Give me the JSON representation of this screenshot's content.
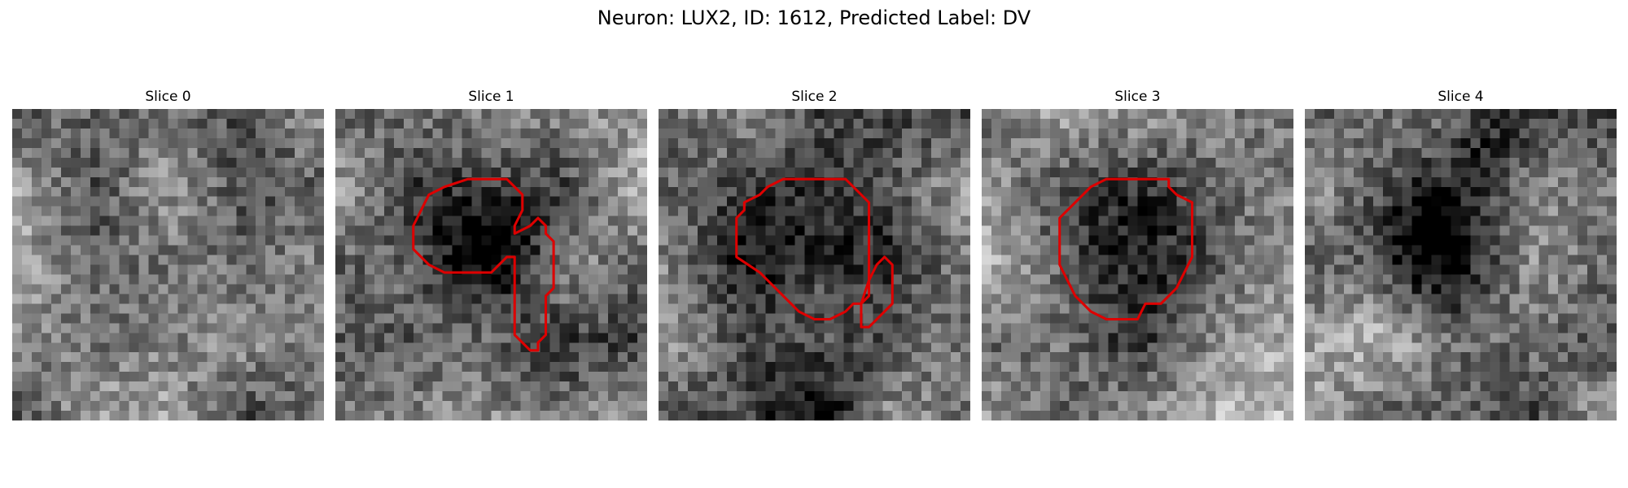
{
  "figure": {
    "title": "Neuron: LUX2, ID: 1612, Predicted Label: DV"
  },
  "panels": [
    {
      "title": "Slice 0",
      "seed": 11,
      "dark_blobs": [],
      "contours": []
    },
    {
      "title": "Slice 1",
      "seed": 23,
      "dark_blobs": [
        {
          "cx": 9.5,
          "cy": 7.5,
          "r": 4.5,
          "strength": 0.45
        },
        {
          "cx": 13.0,
          "cy": 17.0,
          "r": 4.0,
          "strength": 0.25
        }
      ],
      "contours": [
        [
          [
            8.5,
            4.5
          ],
          [
            11,
            4.5
          ],
          [
            12,
            5.5
          ],
          [
            12,
            6.5
          ],
          [
            11.5,
            7.5
          ],
          [
            11.5,
            8
          ],
          [
            12.5,
            7.5
          ],
          [
            13,
            7
          ],
          [
            13.5,
            7.5
          ],
          [
            13.5,
            8
          ],
          [
            14,
            8.5
          ],
          [
            14,
            11.5
          ],
          [
            13.5,
            12
          ],
          [
            13.5,
            14.5
          ],
          [
            13,
            15
          ],
          [
            13,
            15.5
          ],
          [
            12.5,
            15.5
          ],
          [
            12,
            15
          ],
          [
            11.5,
            14.5
          ],
          [
            11.5,
            12
          ],
          [
            11.5,
            10
          ],
          [
            11.5,
            9.5
          ],
          [
            11,
            9.5
          ],
          [
            10.5,
            10
          ],
          [
            10,
            10.5
          ],
          [
            7,
            10.5
          ],
          [
            6,
            10
          ],
          [
            5,
            9
          ],
          [
            5,
            7.5
          ],
          [
            5.5,
            6.5
          ],
          [
            6,
            5.5
          ],
          [
            7,
            5
          ]
        ]
      ]
    },
    {
      "title": "Slice 2",
      "seed": 37,
      "dark_blobs": [
        {
          "cx": 9.5,
          "cy": 8.0,
          "r": 5.0,
          "strength": 0.4
        },
        {
          "cx": 10.0,
          "cy": 17.5,
          "r": 5.0,
          "strength": 0.35
        }
      ],
      "contours": [
        [
          [
            8,
            4.5
          ],
          [
            12,
            4.5
          ],
          [
            13,
            5.5
          ],
          [
            13.5,
            6
          ],
          [
            13.5,
            12
          ],
          [
            13,
            12.5
          ],
          [
            12.5,
            12.5
          ],
          [
            12,
            13
          ],
          [
            11,
            13.5
          ],
          [
            10,
            13.5
          ],
          [
            9,
            13
          ],
          [
            8,
            12
          ],
          [
            6.5,
            10.5
          ],
          [
            5,
            9.5
          ],
          [
            5,
            7
          ],
          [
            5.5,
            6.5
          ],
          [
            5.5,
            6
          ],
          [
            6.5,
            5.5
          ],
          [
            7,
            5
          ]
        ],
        [
          [
            14.5,
            9.5
          ],
          [
            15,
            10
          ],
          [
            15,
            12.5
          ],
          [
            14.5,
            13
          ],
          [
            14,
            13.5
          ],
          [
            13.5,
            14
          ],
          [
            13,
            14
          ],
          [
            13,
            12.5
          ],
          [
            13.5,
            11
          ],
          [
            14,
            10
          ]
        ]
      ]
    },
    {
      "title": "Slice 3",
      "seed": 51,
      "dark_blobs": [
        {
          "cx": 9.5,
          "cy": 8.5,
          "r": 5.5,
          "strength": 0.35
        }
      ],
      "contours": [
        [
          [
            8,
            4.5
          ],
          [
            12,
            4.5
          ],
          [
            12,
            5
          ],
          [
            12.5,
            5.5
          ],
          [
            13.5,
            6
          ],
          [
            13.5,
            9.5
          ],
          [
            13,
            10.5
          ],
          [
            12.5,
            11.5
          ],
          [
            12,
            12
          ],
          [
            11.5,
            12.5
          ],
          [
            10.5,
            12.5
          ],
          [
            10,
            13.5
          ],
          [
            8,
            13.5
          ],
          [
            7,
            13
          ],
          [
            6,
            12
          ],
          [
            5.5,
            11
          ],
          [
            5,
            10
          ],
          [
            5,
            7
          ],
          [
            6,
            6
          ],
          [
            7,
            5
          ]
        ]
      ]
    },
    {
      "title": "Slice 4",
      "seed": 67,
      "dark_blobs": [
        {
          "cx": 7.5,
          "cy": 9.0,
          "r": 3.5,
          "strength": 0.45
        },
        {
          "cx": 11.5,
          "cy": 1.5,
          "r": 3.0,
          "strength": 0.3
        }
      ],
      "contours": []
    }
  ],
  "contour_color": "#dd0000"
}
